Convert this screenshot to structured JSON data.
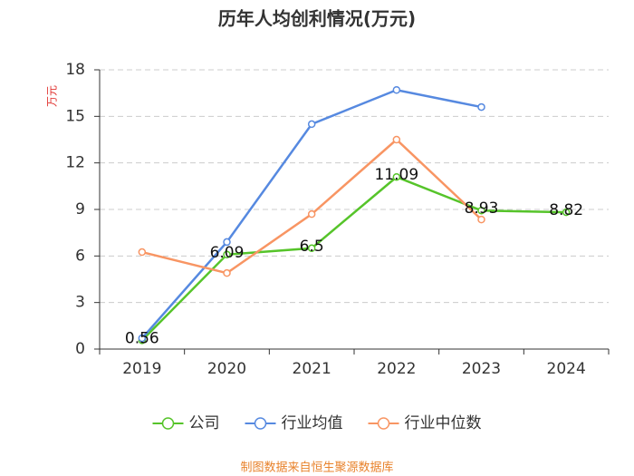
{
  "chart_data": {
    "type": "line",
    "title": "历年人均创利情况(万元)",
    "y_label": "万元",
    "categories": [
      "2019",
      "2020",
      "2021",
      "2022",
      "2023",
      "2024"
    ],
    "series": [
      {
        "name": "公司",
        "color": "#56c42a",
        "values": [
          0.56,
          6.09,
          6.5,
          11.09,
          8.93,
          8.82
        ],
        "show_labels": true
      },
      {
        "name": "行业均值",
        "color": "#5689e0",
        "values": [
          0.7,
          6.9,
          14.5,
          16.7,
          15.6,
          null
        ]
      },
      {
        "name": "行业中位数",
        "color": "#f89563",
        "values": [
          6.25,
          4.9,
          8.7,
          13.5,
          8.35,
          null
        ]
      }
    ],
    "ylim": [
      0,
      18
    ],
    "yticks": [
      0,
      3,
      6,
      9,
      12,
      15,
      18
    ],
    "grid": true,
    "source": "制图数据来自恒生聚源数据库"
  }
}
